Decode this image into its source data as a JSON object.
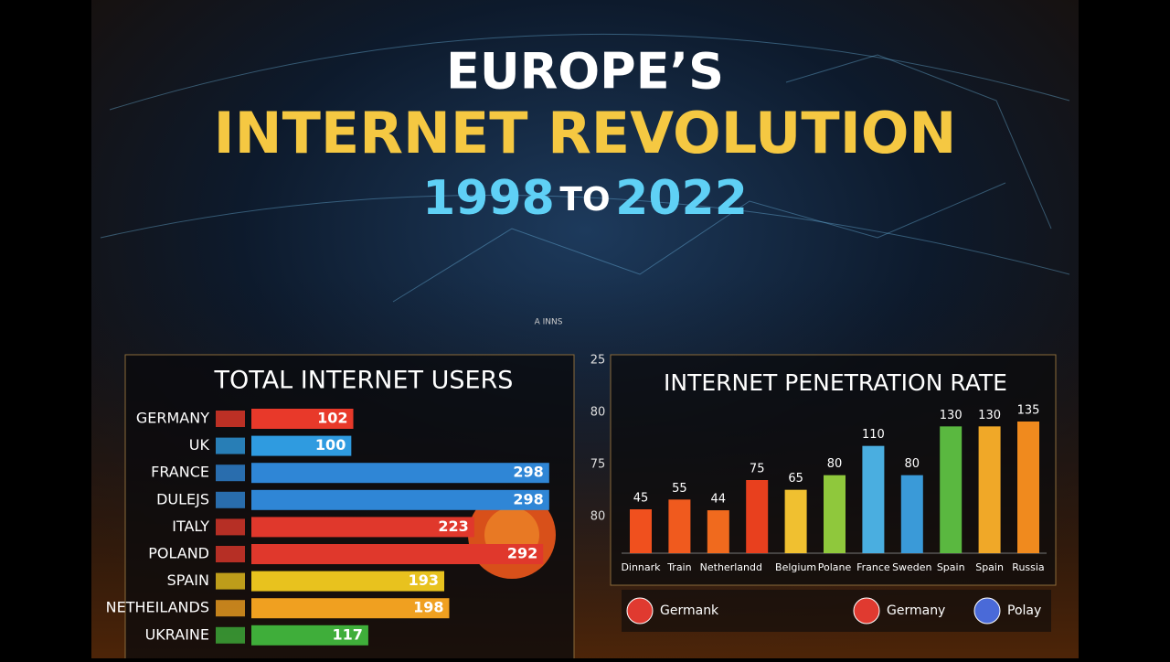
{
  "header": {
    "line1": "EUROPE’S",
    "line2": "INTERNET REVOLUTION",
    "year_from": "1998",
    "to": "TO",
    "year_to": "2022"
  },
  "watermark": "A INNS",
  "chart_data": [
    {
      "type": "hbar",
      "title": "TOTAL INTERNET USERS",
      "categories": [
        "GERMANY",
        "UK",
        "FRANCE",
        "DULEJS",
        "ITALY",
        "POLAND",
        "SPAIN",
        "NETHEILANDS",
        "UKRAINE"
      ],
      "values": [
        102,
        100,
        298,
        298,
        223,
        292,
        193,
        198,
        117
      ],
      "colors": [
        "#e8392a",
        "#2f9be0",
        "#2f86d6",
        "#2f86d6",
        "#e0382c",
        "#e0382c",
        "#e8c21e",
        "#f0a020",
        "#3fae3a"
      ],
      "xlim": [
        0,
        300
      ]
    },
    {
      "type": "bar",
      "title": "INTERNET PENETRATION RATE",
      "categories": [
        "Dinnark",
        "Train",
        "Netherlandd",
        null,
        "Belgium",
        "Polane",
        "France",
        "Sweden",
        "Spain",
        "Spain",
        "Russia"
      ],
      "values": [
        45,
        55,
        44,
        75,
        65,
        80,
        110,
        80,
        130,
        130,
        135
      ],
      "colors": [
        "#f0501e",
        "#f05a1e",
        "#f06a1e",
        "#e8401e",
        "#f0c030",
        "#8fc83c",
        "#4aaee0",
        "#3a9ad8",
        "#5ab840",
        "#f0a828",
        "#f08a1e"
      ],
      "ylim": [
        0,
        150
      ],
      "side_labels": [
        "25",
        "80",
        "75",
        "80"
      ],
      "legend": [
        "Germank",
        "Germany",
        "Polay"
      ]
    }
  ]
}
